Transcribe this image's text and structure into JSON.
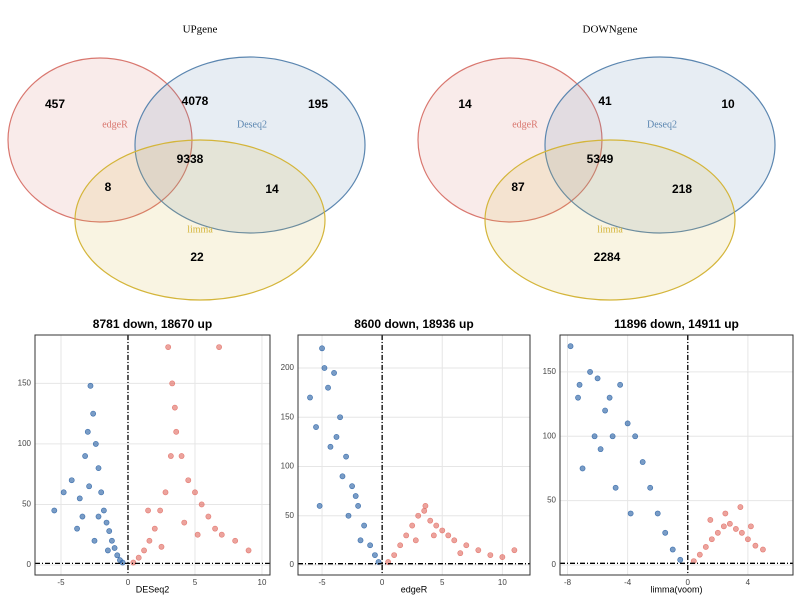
{
  "chart_data": [
    {
      "type": "venn",
      "title": "UPgene",
      "sets": [
        {
          "name": "edgeR",
          "color": "#d9776f"
        },
        {
          "name": "Deseq2",
          "color": "#5b86b0"
        },
        {
          "name": "limma",
          "color": "#d4b53a"
        }
      ],
      "values": [
        457,
        4078,
        195,
        9338,
        8,
        14,
        22
      ]
    },
    {
      "type": "venn",
      "title": "DOWNgene",
      "sets": [
        {
          "name": "edgeR",
          "color": "#d9776f"
        },
        {
          "name": "Deseq2",
          "color": "#5b86b0"
        },
        {
          "name": "limma",
          "color": "#d4b53a"
        }
      ],
      "values": [
        14,
        41,
        10,
        5349,
        87,
        218,
        2284
      ]
    },
    {
      "type": "scatter",
      "title": "8781 down, 18670 up",
      "x_label": "DESeq2",
      "xlim": [
        -6.94,
        10.6
      ],
      "xticks": [
        -5,
        0,
        5,
        10
      ],
      "ylim": [
        -8.3,
        190
      ],
      "yticks": [
        0,
        50,
        100,
        150
      ],
      "grid": true,
      "vline": 0,
      "hline": 1.3,
      "series": [
        {
          "name": "down",
          "color": "#1f5aa0",
          "x": [
            -5.5,
            -4.8,
            -4.2,
            -3.6,
            -3.2,
            -3,
            -2.8,
            -2.6,
            -2.4,
            -2.2,
            -2,
            -1.8,
            -1.6,
            -1.4,
            -1.2,
            -1,
            -0.8,
            -0.6,
            -0.4,
            -3.8,
            -2.5,
            -2.9,
            -2.2,
            -1.5,
            -3.4
          ],
          "values": [
            45,
            60,
            70,
            55,
            90,
            110,
            148,
            125,
            100,
            80,
            60,
            45,
            35,
            28,
            20,
            14,
            8,
            4,
            2,
            30,
            20,
            65,
            40,
            12,
            40
          ]
        },
        {
          "name": "up",
          "color": "#e0665c",
          "x": [
            0.4,
            0.8,
            1.2,
            1.6,
            2,
            2.4,
            2.8,
            3.2,
            3.6,
            4,
            4.5,
            5,
            5.5,
            6,
            6.5,
            7,
            8,
            9,
            2.5,
            3.3,
            3,
            4.2,
            6.8,
            3.5,
            1.5,
            5.2
          ],
          "values": [
            2,
            6,
            12,
            20,
            30,
            45,
            60,
            90,
            110,
            90,
            70,
            60,
            50,
            40,
            30,
            25,
            20,
            12,
            15,
            150,
            180,
            35,
            180,
            130,
            45,
            25
          ]
        }
      ]
    },
    {
      "type": "scatter",
      "title": "8600 down, 18936 up",
      "x_label": "edgeR",
      "xlim": [
        -7,
        12.3
      ],
      "xticks": [
        -5,
        0,
        5,
        10
      ],
      "ylim": [
        -10.2,
        233.5
      ],
      "yticks": [
        0,
        50,
        100,
        150,
        200
      ],
      "grid": true,
      "vline": 0,
      "hline": 1.3,
      "series": [
        {
          "name": "down",
          "color": "#1f5aa0",
          "x": [
            -6,
            -5.5,
            -5,
            -4.5,
            -4,
            -3.5,
            -3,
            -2.5,
            -2,
            -1.5,
            -1,
            -0.6,
            -0.3,
            -4.8,
            -3.3,
            -2.8,
            -3.8,
            -1.8,
            -2.2,
            -5.2,
            -4.3
          ],
          "values": [
            170,
            140,
            220,
            180,
            195,
            150,
            110,
            80,
            60,
            40,
            20,
            10,
            3,
            200,
            90,
            50,
            130,
            25,
            70,
            60,
            120
          ]
        },
        {
          "name": "up",
          "color": "#e0665c",
          "x": [
            0.5,
            1,
            1.5,
            2,
            2.5,
            3,
            3.5,
            4,
            4.5,
            5,
            5.5,
            6,
            7,
            8,
            9,
            10,
            11,
            2.8,
            4.3,
            3.6,
            6.5
          ],
          "values": [
            3,
            10,
            20,
            30,
            40,
            50,
            55,
            45,
            40,
            35,
            30,
            25,
            20,
            15,
            10,
            8,
            15,
            25,
            30,
            60,
            12
          ]
        }
      ]
    },
    {
      "type": "scatter",
      "title": "11896 down, 14911 up",
      "x_label": "limma(voom)",
      "xlim": [
        -8.5,
        7
      ],
      "xticks": [
        -8,
        -4,
        0,
        4
      ],
      "ylim": [
        -7.8,
        178.7
      ],
      "yticks": [
        0,
        50,
        100,
        150
      ],
      "grid": true,
      "vline": 0,
      "hline": 1.3,
      "series": [
        {
          "name": "down",
          "color": "#1f5aa0",
          "x": [
            -7.8,
            -7.3,
            -7,
            -6.5,
            -6,
            -5.5,
            -5,
            -4.5,
            -4,
            -3.5,
            -3,
            -2.5,
            -2,
            -1.5,
            -1,
            -0.5,
            -7.2,
            -5.8,
            -4.8,
            -3.8,
            -6.2,
            -5.2
          ],
          "values": [
            170,
            130,
            75,
            150,
            145,
            120,
            100,
            140,
            110,
            100,
            80,
            60,
            40,
            25,
            12,
            4,
            140,
            90,
            60,
            40,
            100,
            130
          ]
        },
        {
          "name": "up",
          "color": "#e0665c",
          "x": [
            0.4,
            0.8,
            1.2,
            1.6,
            2,
            2.4,
            2.8,
            3.2,
            3.6,
            4,
            4.5,
            5,
            1.5,
            2.5,
            3.5,
            4.2
          ],
          "values": [
            3,
            8,
            14,
            20,
            25,
            30,
            32,
            28,
            25,
            20,
            15,
            12,
            35,
            40,
            45,
            30
          ]
        }
      ]
    }
  ]
}
